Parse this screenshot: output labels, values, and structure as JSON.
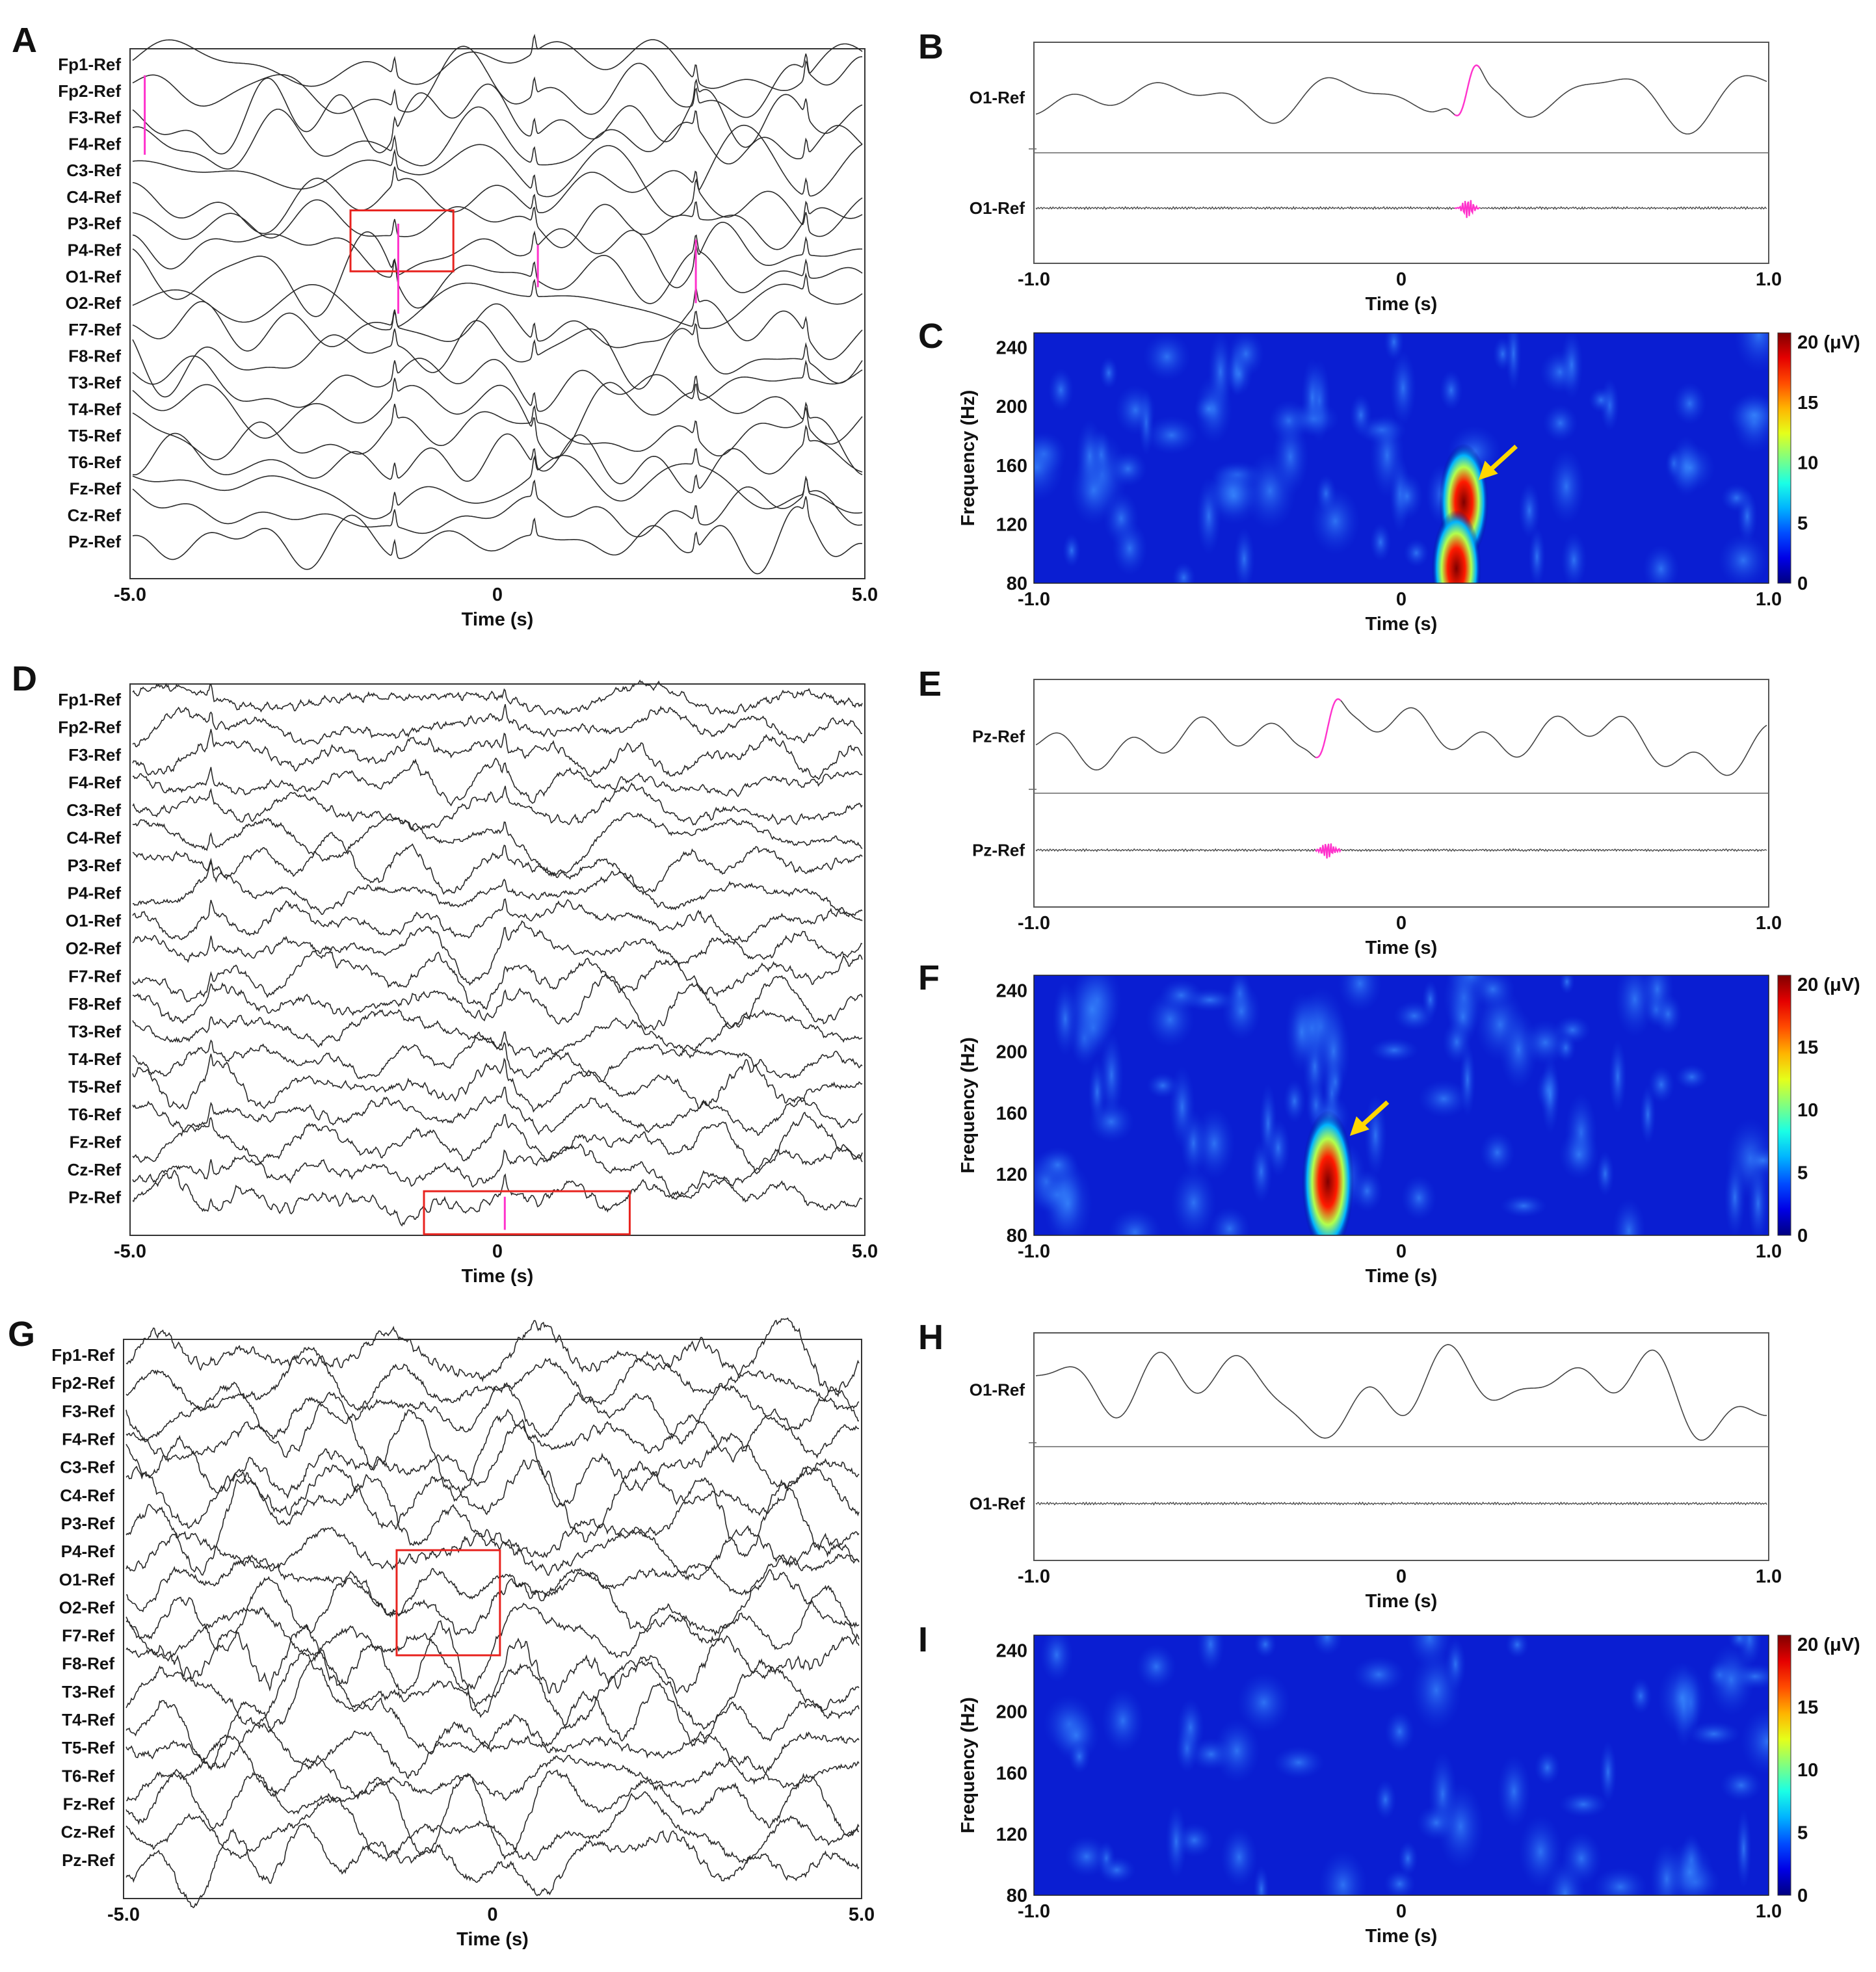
{
  "panels": {
    "A": {
      "letter": "A",
      "type": "eeg-montage",
      "channels": [
        "Fp1-Ref",
        "Fp2-Ref",
        "F3-Ref",
        "F4-Ref",
        "C3-Ref",
        "C4-Ref",
        "P3-Ref",
        "P4-Ref",
        "O1-Ref",
        "O2-Ref",
        "F7-Ref",
        "F8-Ref",
        "T3-Ref",
        "T4-Ref",
        "T5-Ref",
        "T6-Ref",
        "Fz-Ref",
        "Cz-Ref",
        "Pz-Ref"
      ],
      "x_ticks": [
        "-5.0",
        "0",
        "5.0"
      ],
      "xlabel": "Time  (s)",
      "highlight_time_s": [
        -2.0,
        -0.6
      ]
    },
    "B": {
      "letter": "B",
      "type": "trace-pair",
      "labels": [
        "O1-Ref",
        "O1-Ref"
      ],
      "x_ticks": [
        "-1.0",
        "0",
        "1.0"
      ],
      "xlabel": "Time  (s)",
      "event_time_s": 0.18
    },
    "C": {
      "letter": "C",
      "type": "tf-map",
      "y_ticks": [
        "240",
        "200",
        "160",
        "120",
        "80"
      ],
      "ylabel": "Frequency  (Hz)",
      "x_ticks": [
        "-1.0",
        "0",
        "1.0"
      ],
      "xlabel": "Time  (s)",
      "cb_ticks": [
        "20 (μV)",
        "15",
        "10",
        "5",
        "0"
      ]
    },
    "D": {
      "letter": "D",
      "type": "eeg-montage",
      "channels": [
        "Fp1-Ref",
        "Fp2-Ref",
        "F3-Ref",
        "F4-Ref",
        "C3-Ref",
        "C4-Ref",
        "P3-Ref",
        "P4-Ref",
        "O1-Ref",
        "O2-Ref",
        "F7-Ref",
        "F8-Ref",
        "T3-Ref",
        "T4-Ref",
        "T5-Ref",
        "T6-Ref",
        "Fz-Ref",
        "Cz-Ref",
        "Pz-Ref"
      ],
      "x_ticks": [
        "-5.0",
        "0",
        "5.0"
      ],
      "xlabel": "Time  (s)",
      "highlight_time_s": [
        -1.0,
        1.8
      ]
    },
    "E": {
      "letter": "E",
      "type": "trace-pair",
      "labels": [
        "Pz-Ref",
        "Pz-Ref"
      ],
      "x_ticks": [
        "-1.0",
        "0",
        "1.0"
      ],
      "xlabel": "Time  (s)",
      "event_time_s": -0.2
    },
    "F": {
      "letter": "F",
      "type": "tf-map",
      "y_ticks": [
        "240",
        "200",
        "160",
        "120",
        "80"
      ],
      "ylabel": "Frequency  (Hz)",
      "x_ticks": [
        "-1.0",
        "0",
        "1.0"
      ],
      "xlabel": "Time  (s)",
      "cb_ticks": [
        "20 (μV)",
        "15",
        "10",
        "5",
        "0"
      ]
    },
    "G": {
      "letter": "G",
      "type": "eeg-montage",
      "channels": [
        "Fp1-Ref",
        "Fp2-Ref",
        "F3-Ref",
        "F4-Ref",
        "C3-Ref",
        "C4-Ref",
        "P3-Ref",
        "P4-Ref",
        "O1-Ref",
        "O2-Ref",
        "F7-Ref",
        "F8-Ref",
        "T3-Ref",
        "T4-Ref",
        "T5-Ref",
        "T6-Ref",
        "Fz-Ref",
        "Cz-Ref",
        "Pz-Ref"
      ],
      "x_ticks": [
        "-5.0",
        "0",
        "5.0"
      ],
      "xlabel": "Time  (s)",
      "highlight_time_s": [
        -1.3,
        0.1
      ]
    },
    "H": {
      "letter": "H",
      "type": "trace-pair",
      "labels": [
        "O1-Ref",
        "O1-Ref"
      ],
      "x_ticks": [
        "-1.0",
        "0",
        "1.0"
      ],
      "xlabel": "Time  (s)",
      "event_time_s": null
    },
    "I": {
      "letter": "I",
      "type": "tf-map",
      "y_ticks": [
        "240",
        "200",
        "160",
        "120",
        "80"
      ],
      "ylabel": "Frequency  (Hz)",
      "x_ticks": [
        "-1.0",
        "0",
        "1.0"
      ],
      "xlabel": "Time  (s)",
      "cb_ticks": [
        "20 (μV)",
        "15",
        "10",
        "5",
        "0"
      ]
    }
  },
  "chart_data": [
    {
      "type": "line",
      "panel": "A",
      "x_range_s": [
        -5,
        5
      ],
      "channels": 19
    },
    {
      "type": "line",
      "panel": "B",
      "x_range_s": [
        -1,
        1
      ]
    },
    {
      "type": "heatmap",
      "panel": "C",
      "x_range_s": [
        -1,
        1
      ],
      "y_range_hz": [
        80,
        250
      ],
      "z_range_uv": [
        0,
        20
      ],
      "peaks": [
        {
          "time_s": 0.17,
          "freq_hz": 135,
          "amp_uv": 20
        },
        {
          "time_s": 0.15,
          "freq_hz": 90,
          "amp_uv": 20
        }
      ],
      "arrow_at": {
        "time_s": 0.21,
        "freq_hz": 150
      }
    },
    {
      "type": "line",
      "panel": "D",
      "x_range_s": [
        -5,
        5
      ],
      "channels": 19
    },
    {
      "type": "line",
      "panel": "E",
      "x_range_s": [
        -1,
        1
      ]
    },
    {
      "type": "heatmap",
      "panel": "F",
      "x_range_s": [
        -1,
        1
      ],
      "y_range_hz": [
        80,
        250
      ],
      "z_range_uv": [
        0,
        20
      ],
      "peaks": [
        {
          "time_s": -0.2,
          "freq_hz": 115,
          "amp_uv": 20
        }
      ],
      "arrow_at": {
        "time_s": -0.14,
        "freq_hz": 145
      }
    },
    {
      "type": "line",
      "panel": "G",
      "x_range_s": [
        -5,
        5
      ],
      "channels": 19
    },
    {
      "type": "line",
      "panel": "H",
      "x_range_s": [
        -1,
        1
      ]
    },
    {
      "type": "heatmap",
      "panel": "I",
      "x_range_s": [
        -1,
        1
      ],
      "y_range_hz": [
        80,
        250
      ],
      "z_range_uv": [
        0,
        20
      ],
      "peaks": []
    }
  ],
  "colors": {
    "trace": "#2a2a2a",
    "highlight": "#ff33cc",
    "box": "#e8231f",
    "arrow": "#ffd700"
  }
}
